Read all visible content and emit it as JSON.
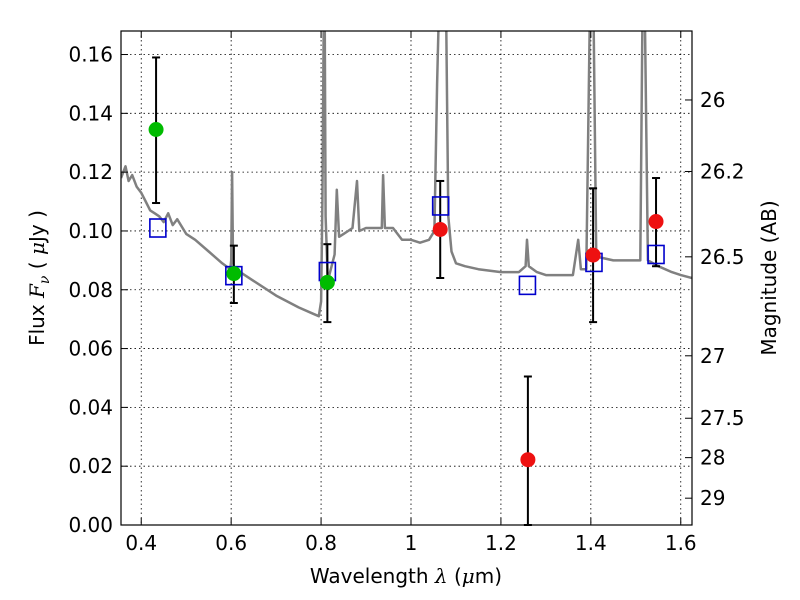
{
  "chart_data": {
    "type": "scatter",
    "title": "",
    "xlabel": "Wavelength",
    "xlabel_symbol": "λ",
    "xlabel_unit_open": " (",
    "xlabel_unit_mu": "μ",
    "xlabel_unit_close": "m)",
    "ylabel": "Flux",
    "ylabel_symbol": "F",
    "ylabel_subscript": "ν",
    "ylabel_unit_open": "(",
    "ylabel_unit_mu": "μ",
    "ylabel_unit_close": "Jy )",
    "y2label": "Magnitude (AB)",
    "xlim": [
      0.355,
      1.625
    ],
    "ylim": [
      0.0,
      0.168
    ],
    "grid": true,
    "x_ticks": [
      {
        "value": 0.4,
        "label": "0.4"
      },
      {
        "value": 0.6,
        "label": "0.6"
      },
      {
        "value": 0.8,
        "label": "0.8"
      },
      {
        "value": 1.0,
        "label": "1"
      },
      {
        "value": 1.2,
        "label": "1.2"
      },
      {
        "value": 1.4,
        "label": "1.4"
      },
      {
        "value": 1.6,
        "label": "1.6"
      }
    ],
    "y_ticks": [
      {
        "value": 0.0,
        "label": "0.00"
      },
      {
        "value": 0.02,
        "label": "0.02"
      },
      {
        "value": 0.04,
        "label": "0.04"
      },
      {
        "value": 0.06,
        "label": "0.06"
      },
      {
        "value": 0.08,
        "label": "0.08"
      },
      {
        "value": 0.1,
        "label": "0.10"
      },
      {
        "value": 0.12,
        "label": "0.12"
      },
      {
        "value": 0.14,
        "label": "0.14"
      },
      {
        "value": 0.16,
        "label": "0.16"
      }
    ],
    "y2_ticks": [
      {
        "magnitude": 26,
        "label": "26"
      },
      {
        "magnitude": 26.2,
        "label": "26.2"
      },
      {
        "magnitude": 26.5,
        "label": "26.5"
      },
      {
        "magnitude": 27,
        "label": "27"
      },
      {
        "magnitude": 27.5,
        "label": "27.5"
      },
      {
        "magnitude": 28,
        "label": "28"
      },
      {
        "magnitude": 29,
        "label": "29"
      }
    ],
    "colors": {
      "green": "#00bb00",
      "red": "#ee1111",
      "model": "#0000cc",
      "sed": "#808080",
      "errorbar": "#000000",
      "grid": "#000000"
    },
    "sed": [
      [
        0.355,
        0.118
      ],
      [
        0.365,
        0.122
      ],
      [
        0.372,
        0.117
      ],
      [
        0.38,
        0.119
      ],
      [
        0.39,
        0.115
      ],
      [
        0.4,
        0.113
      ],
      [
        0.41,
        0.11
      ],
      [
        0.42,
        0.107
      ],
      [
        0.43,
        0.106
      ],
      [
        0.44,
        0.105
      ],
      [
        0.45,
        0.103
      ],
      [
        0.46,
        0.106
      ],
      [
        0.47,
        0.102
      ],
      [
        0.48,
        0.104
      ],
      [
        0.5,
        0.099
      ],
      [
        0.52,
        0.097
      ],
      [
        0.55,
        0.093
      ],
      [
        0.58,
        0.089
      ],
      [
        0.598,
        0.087
      ],
      [
        0.6,
        0.09
      ],
      [
        0.602,
        0.12
      ],
      [
        0.604,
        0.09
      ],
      [
        0.606,
        0.087
      ],
      [
        0.62,
        0.086
      ],
      [
        0.65,
        0.083
      ],
      [
        0.7,
        0.078
      ],
      [
        0.75,
        0.074
      ],
      [
        0.78,
        0.072
      ],
      [
        0.795,
        0.071
      ],
      [
        0.8,
        0.076
      ],
      [
        0.803,
        0.11
      ],
      [
        0.806,
        0.175
      ],
      [
        0.808,
        0.175
      ],
      [
        0.81,
        0.105
      ],
      [
        0.815,
        0.083
      ],
      [
        0.82,
        0.086
      ],
      [
        0.83,
        0.092
      ],
      [
        0.835,
        0.114
      ],
      [
        0.84,
        0.098
      ],
      [
        0.85,
        0.099
      ],
      [
        0.86,
        0.1
      ],
      [
        0.87,
        0.101
      ],
      [
        0.88,
        0.117
      ],
      [
        0.885,
        0.1
      ],
      [
        0.9,
        0.101
      ],
      [
        0.92,
        0.101
      ],
      [
        0.935,
        0.101
      ],
      [
        0.938,
        0.119
      ],
      [
        0.942,
        0.101
      ],
      [
        0.96,
        0.101
      ],
      [
        0.98,
        0.097
      ],
      [
        1.0,
        0.097
      ],
      [
        1.02,
        0.096
      ],
      [
        1.04,
        0.097
      ],
      [
        1.052,
        0.1
      ],
      [
        1.058,
        0.15
      ],
      [
        1.062,
        0.175
      ],
      [
        1.072,
        0.175
      ],
      [
        1.078,
        0.175
      ],
      [
        1.083,
        0.105
      ],
      [
        1.09,
        0.093
      ],
      [
        1.1,
        0.089
      ],
      [
        1.12,
        0.088
      ],
      [
        1.15,
        0.087
      ],
      [
        1.2,
        0.086
      ],
      [
        1.24,
        0.086
      ],
      [
        1.255,
        0.088
      ],
      [
        1.258,
        0.097
      ],
      [
        1.262,
        0.088
      ],
      [
        1.28,
        0.086
      ],
      [
        1.3,
        0.085
      ],
      [
        1.33,
        0.085
      ],
      [
        1.36,
        0.085
      ],
      [
        1.372,
        0.097
      ],
      [
        1.378,
        0.087
      ],
      [
        1.39,
        0.087
      ],
      [
        1.398,
        0.175
      ],
      [
        1.402,
        0.175
      ],
      [
        1.406,
        0.175
      ],
      [
        1.412,
        0.093
      ],
      [
        1.42,
        0.091
      ],
      [
        1.45,
        0.09
      ],
      [
        1.48,
        0.09
      ],
      [
        1.51,
        0.09
      ],
      [
        1.515,
        0.175
      ],
      [
        1.52,
        0.175
      ],
      [
        1.527,
        0.09
      ],
      [
        1.55,
        0.088
      ],
      [
        1.58,
        0.086
      ],
      [
        1.6,
        0.085
      ],
      [
        1.625,
        0.084
      ]
    ],
    "observed": [
      {
        "x": 0.433,
        "y": 0.1345,
        "yerr_low": 0.1095,
        "yerr_high": 0.159,
        "color": "green"
      },
      {
        "x": 0.606,
        "y": 0.0855,
        "yerr_low": 0.0755,
        "yerr_high": 0.095,
        "color": "green"
      },
      {
        "x": 0.814,
        "y": 0.0825,
        "yerr_low": 0.069,
        "yerr_high": 0.0955,
        "color": "green"
      },
      {
        "x": 1.065,
        "y": 0.1005,
        "yerr_low": 0.084,
        "yerr_high": 0.117,
        "color": "red"
      },
      {
        "x": 1.26,
        "y": 0.0222,
        "yerr_low": 0.0,
        "yerr_high": 0.0505,
        "color": "red"
      },
      {
        "x": 1.405,
        "y": 0.0918,
        "yerr_low": 0.069,
        "yerr_high": 0.1145,
        "color": "red"
      },
      {
        "x": 1.545,
        "y": 0.1032,
        "yerr_low": 0.088,
        "yerr_high": 0.118,
        "color": "red"
      }
    ],
    "model": [
      {
        "x": 0.437,
        "y": 0.101
      },
      {
        "x": 0.606,
        "y": 0.0848
      },
      {
        "x": 0.814,
        "y": 0.0862
      },
      {
        "x": 1.066,
        "y": 0.1085
      },
      {
        "x": 1.259,
        "y": 0.0815
      },
      {
        "x": 1.407,
        "y": 0.0893
      },
      {
        "x": 1.545,
        "y": 0.092
      }
    ]
  }
}
